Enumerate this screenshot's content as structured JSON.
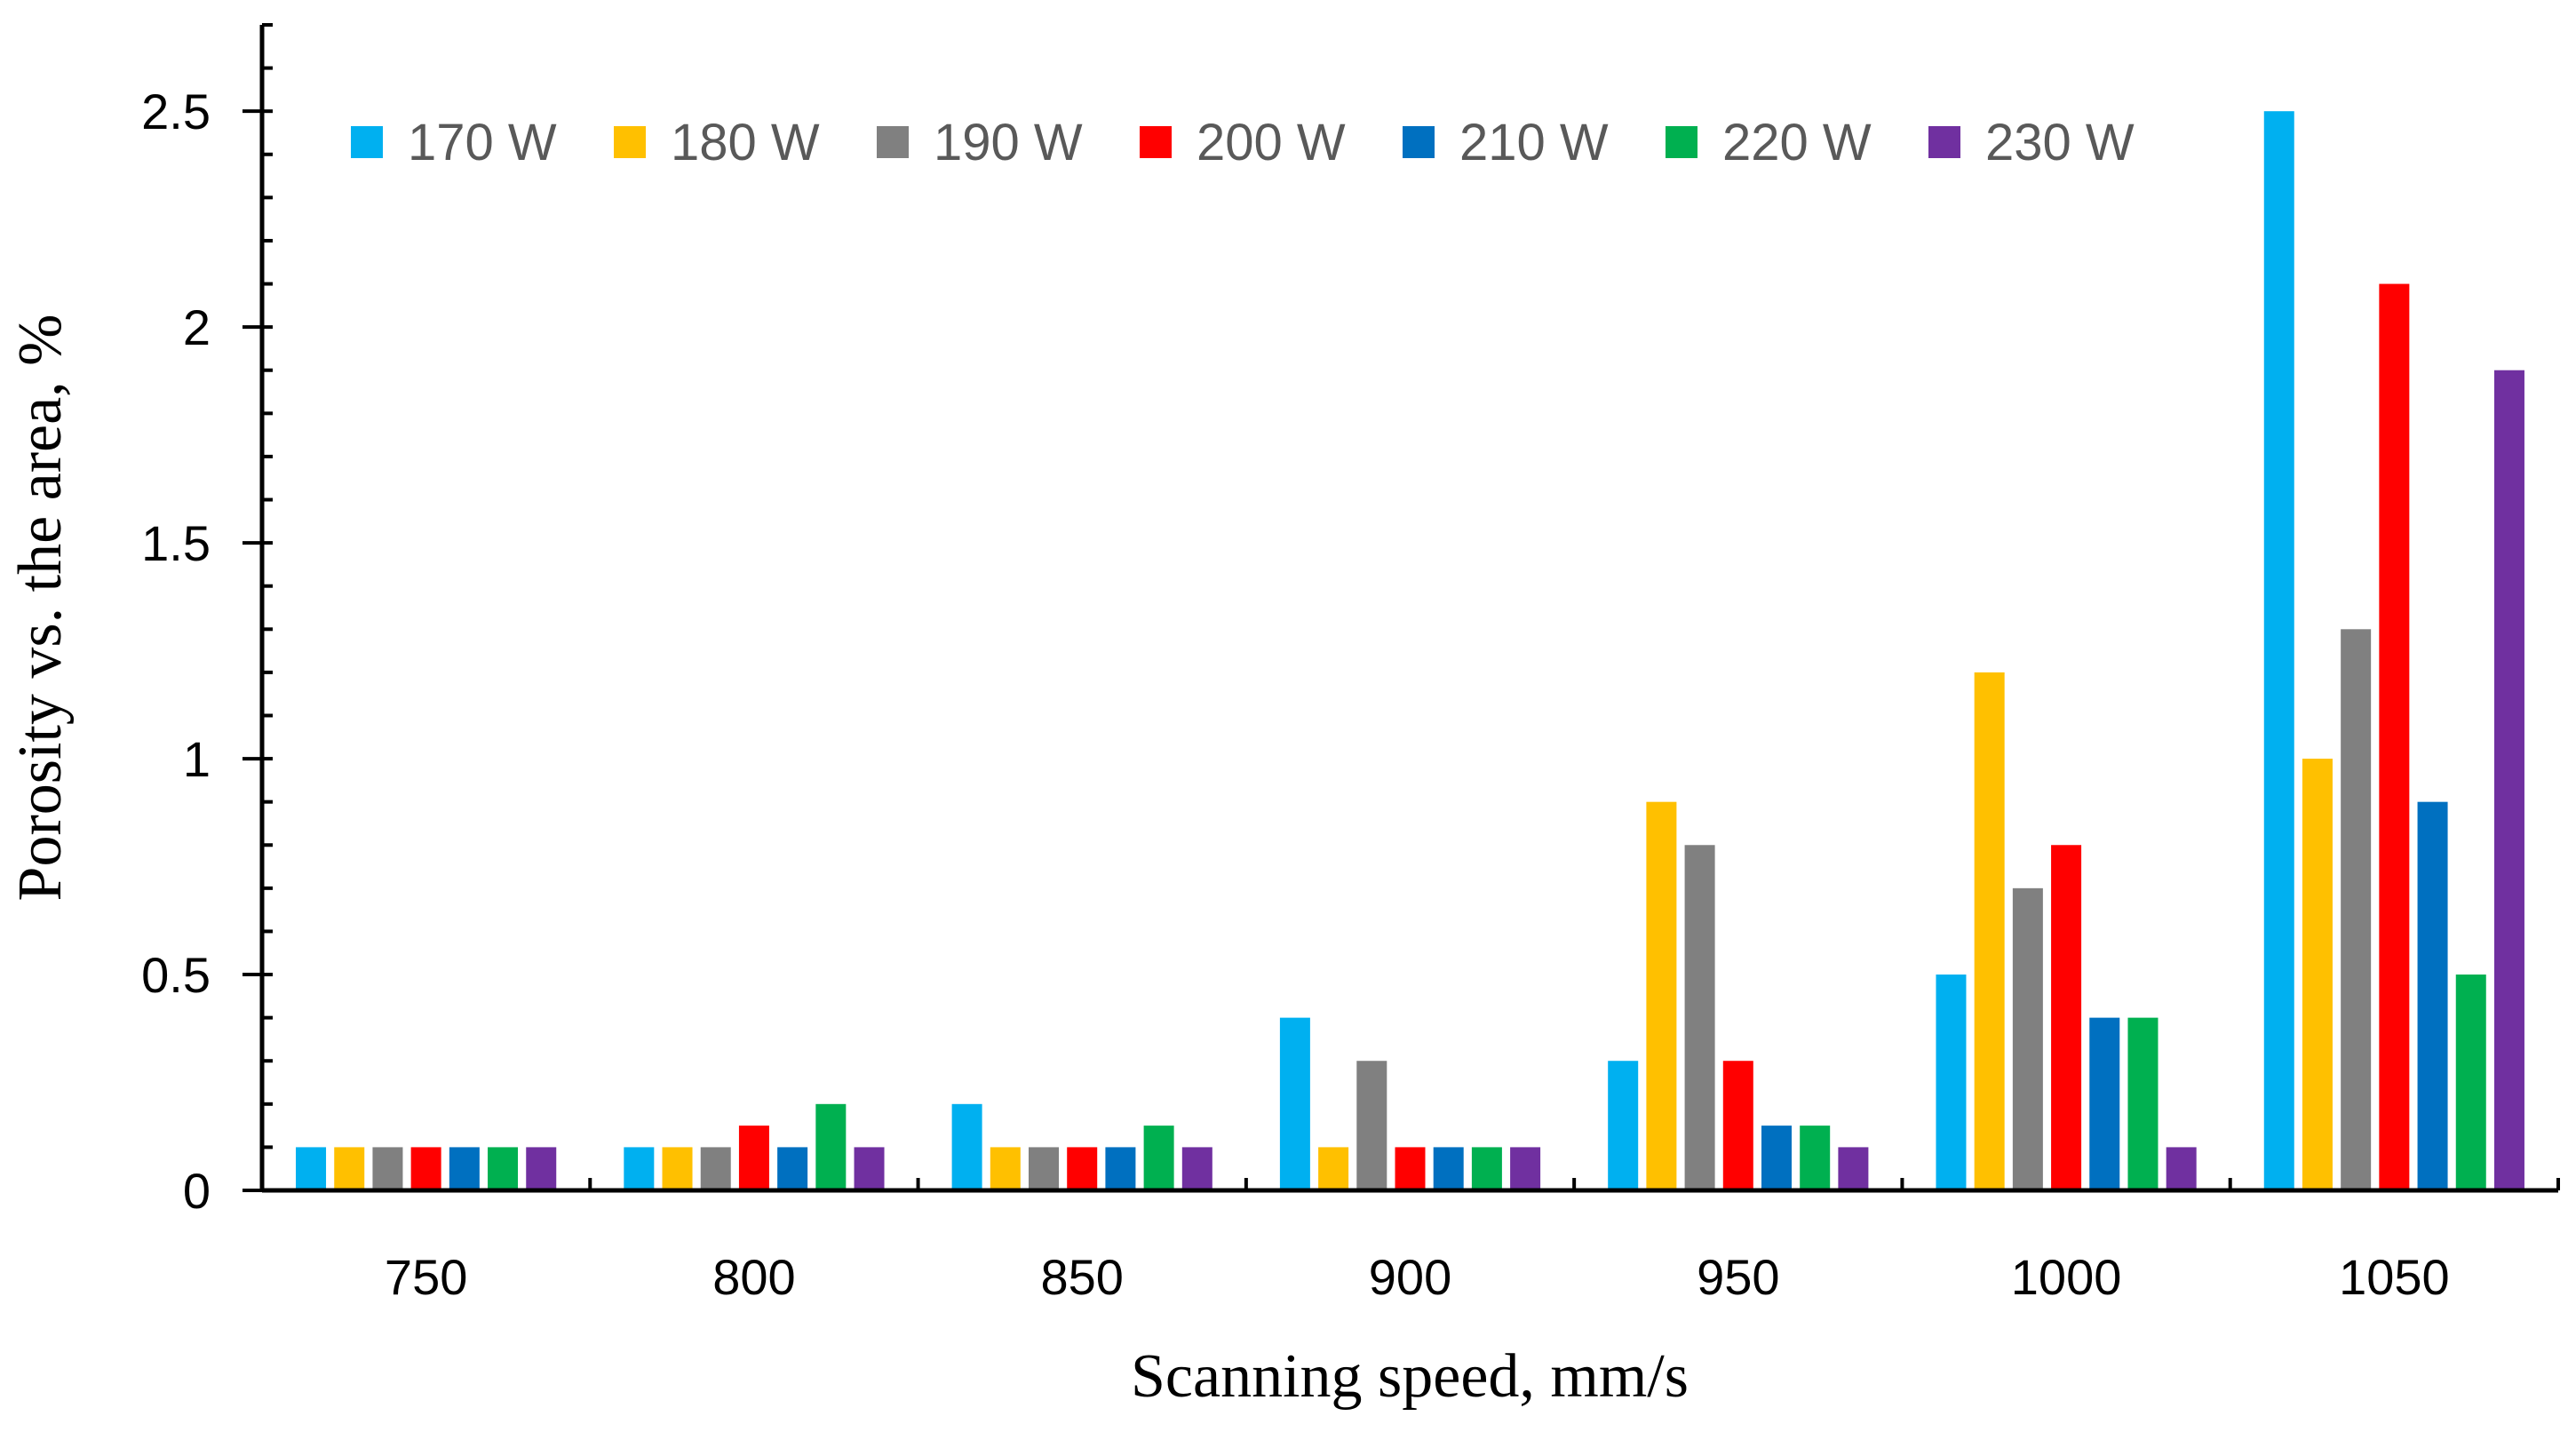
{
  "chart_data": {
    "type": "bar",
    "title": "",
    "xlabel": "Scanning speed, mm/s",
    "ylabel": "Porosity vs. the area, %",
    "categories": [
      "750",
      "800",
      "850",
      "900",
      "950",
      "1000",
      "1050"
    ],
    "ylim": [
      0,
      2.7
    ],
    "yticks": [
      "0",
      "0.5",
      "1",
      "1.5",
      "2",
      "2.5"
    ],
    "yminor_step": 0.1,
    "grid": false,
    "legend_position": "top",
    "series": [
      {
        "name": "170 W",
        "color": "#00B0F0",
        "values": [
          0.1,
          0.1,
          0.2,
          0.4,
          0.3,
          0.5,
          2.5
        ]
      },
      {
        "name": "180 W",
        "color": "#FFC000",
        "values": [
          0.1,
          0.1,
          0.1,
          0.1,
          0.9,
          1.2,
          1.0
        ]
      },
      {
        "name": "190 W",
        "color": "#808080",
        "values": [
          0.1,
          0.1,
          0.1,
          0.3,
          0.8,
          0.7,
          1.3
        ]
      },
      {
        "name": "200 W",
        "color": "#FF0000",
        "values": [
          0.1,
          0.15,
          0.1,
          0.1,
          0.3,
          0.8,
          2.1
        ]
      },
      {
        "name": "210 W",
        "color": "#0070C0",
        "values": [
          0.1,
          0.1,
          0.1,
          0.1,
          0.15,
          0.4,
          0.9
        ]
      },
      {
        "name": "220 W",
        "color": "#00B050",
        "values": [
          0.1,
          0.2,
          0.15,
          0.1,
          0.15,
          0.4,
          0.5
        ]
      },
      {
        "name": "230 W",
        "color": "#7030A0",
        "values": [
          0.1,
          0.1,
          0.1,
          0.1,
          0.1,
          0.1,
          1.9
        ]
      }
    ]
  }
}
